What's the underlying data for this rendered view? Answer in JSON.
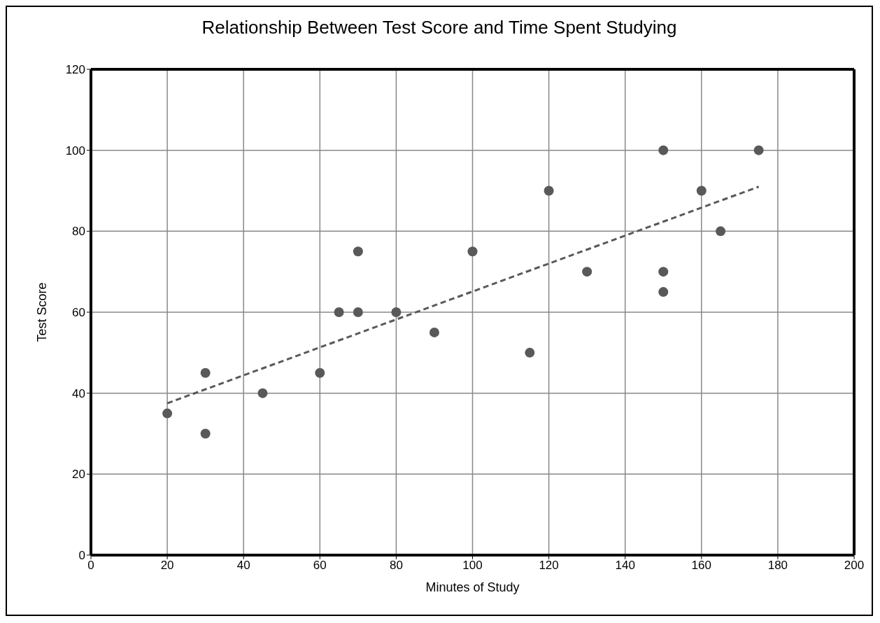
{
  "chart_data": {
    "type": "scatter",
    "title": "Relationship Between Test Score and Time Spent Studying",
    "xlabel": "Minutes of Study",
    "ylabel": "Test Score",
    "xlim": [
      0,
      200
    ],
    "xticks": [
      0,
      20,
      40,
      60,
      80,
      100,
      120,
      140,
      160,
      180,
      200
    ],
    "ylim": [
      0,
      120
    ],
    "yticks": [
      0,
      20,
      40,
      60,
      80,
      100,
      120
    ],
    "grid": true,
    "marker": "circle",
    "series": [
      {
        "color": "#595959",
        "x": [
          20,
          30,
          30,
          45,
          60,
          65,
          70,
          70,
          80,
          90,
          100,
          115,
          120,
          130,
          150,
          150,
          150,
          160,
          165,
          175
        ],
        "values": [
          35,
          45,
          30,
          40,
          45,
          60,
          75,
          60,
          60,
          55,
          75,
          50,
          90,
          70,
          100,
          70,
          65,
          90,
          80,
          100
        ]
      },
      {
        "type": "line",
        "color": "#595959",
        "line_style": "dashed",
        "marker": "none",
        "x": [
          20,
          175
        ],
        "values": [
          37.5,
          91
        ]
      }
    ]
  }
}
